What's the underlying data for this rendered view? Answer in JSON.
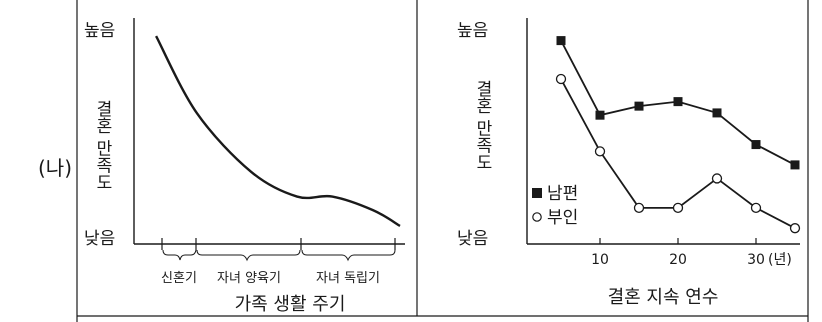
{
  "panel_label": "(나)",
  "chart_data": [
    {
      "type": "line",
      "title": "",
      "xlabel": "가족 생활 주기",
      "ylabel": "결혼 만족도",
      "y_high_label": "높음",
      "y_low_label": "낮음",
      "x_segments": [
        "신혼기",
        "자녀 양육기",
        "자녀 독립기"
      ],
      "grid": false,
      "series": [
        {
          "values_description": "satisfaction trend (relative, 0=낮음, 1=높음)",
          "x": [
            0.1,
            0.25,
            0.45,
            0.62,
            0.75,
            0.9,
            1.0
          ],
          "y": [
            0.92,
            0.58,
            0.32,
            0.21,
            0.21,
            0.15,
            0.08
          ]
        }
      ]
    },
    {
      "type": "line",
      "title": "",
      "xlabel": "결혼 지속 연수",
      "ylabel": "결혼 만족도",
      "y_high_label": "높음",
      "y_low_label": "낮음",
      "x_unit": "(년)",
      "x_ticks": [
        10,
        20,
        30
      ],
      "xlim": [
        0,
        35
      ],
      "ylim": [
        0,
        1
      ],
      "grid": false,
      "legend_position": "bottom-left",
      "series": [
        {
          "name": "남편",
          "marker": "filled-square",
          "x": [
            5,
            10,
            15,
            20,
            25,
            30,
            35
          ],
          "y": [
            0.9,
            0.57,
            0.61,
            0.63,
            0.58,
            0.44,
            0.35
          ]
        },
        {
          "name": "부인",
          "marker": "open-circle",
          "x": [
            5,
            10,
            15,
            20,
            25,
            30,
            35
          ],
          "y": [
            0.73,
            0.41,
            0.16,
            0.16,
            0.29,
            0.16,
            0.07
          ]
        }
      ]
    }
  ]
}
